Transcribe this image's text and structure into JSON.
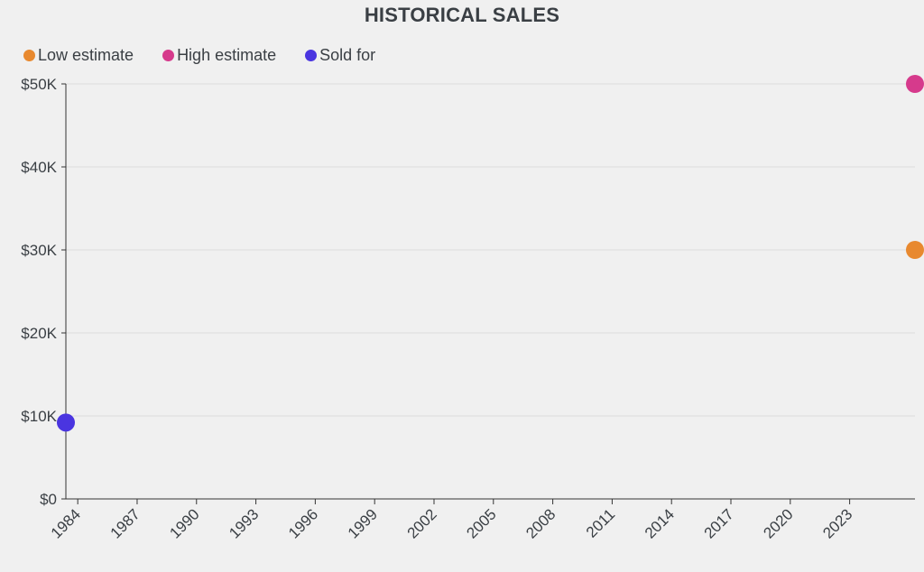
{
  "chart_data": {
    "type": "scatter",
    "title": "HISTORICAL SALES",
    "xlabel": "",
    "ylabel": "",
    "x_ticks": [
      "1984",
      "1987",
      "1990",
      "1993",
      "1996",
      "1999",
      "2002",
      "2005",
      "2008",
      "2011",
      "2014",
      "2017",
      "2020",
      "2023"
    ],
    "y_ticks": [
      "$0",
      "$10K",
      "$20K",
      "$30K",
      "$40K",
      "$50K"
    ],
    "xlim": [
      1983.4,
      2026.3
    ],
    "ylim": [
      0,
      50000
    ],
    "grid": true,
    "legend_position": "top-left",
    "series": [
      {
        "name": "Low estimate",
        "color": "#e8892f",
        "points": [
          {
            "x": 2026.3,
            "y": 30000
          }
        ]
      },
      {
        "name": "High estimate",
        "color": "#d63a8c",
        "points": [
          {
            "x": 2026.3,
            "y": 50000
          }
        ]
      },
      {
        "name": "Sold for",
        "color": "#4a35e0",
        "points": [
          {
            "x": 1983.4,
            "y": 9200
          }
        ]
      }
    ]
  },
  "colors": {
    "background": "#f0f0f0",
    "gridline": "#dcdcdc",
    "axis": "#333333",
    "text": "#3a3f44"
  }
}
